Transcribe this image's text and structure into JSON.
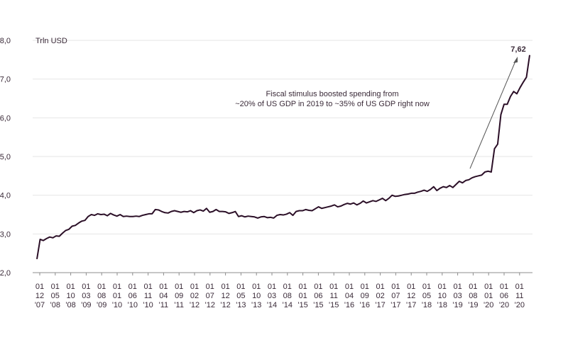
{
  "chart_data": {
    "type": "line",
    "unit_label": "Trln USD",
    "ylim": [
      2.0,
      8.0
    ],
    "y_ticks": [
      "2,0",
      "3,0",
      "4,0",
      "5,0",
      "6,0",
      "7,0",
      "8,0"
    ],
    "x_tick_labels": [
      [
        "01",
        "12",
        "'07"
      ],
      [
        "01",
        "05",
        "'08"
      ],
      [
        "01",
        "10",
        "'08"
      ],
      [
        "01",
        "03",
        "'09"
      ],
      [
        "01",
        "08",
        "'09"
      ],
      [
        "01",
        "01",
        "'10"
      ],
      [
        "01",
        "06",
        "'10"
      ],
      [
        "01",
        "11",
        "'10"
      ],
      [
        "01",
        "04",
        "'11"
      ],
      [
        "01",
        "09",
        "'11"
      ],
      [
        "01",
        "02",
        "'12"
      ],
      [
        "01",
        "07",
        "'12"
      ],
      [
        "01",
        "12",
        "'12"
      ],
      [
        "01",
        "05",
        "'13"
      ],
      [
        "01",
        "10",
        "'13"
      ],
      [
        "01",
        "03",
        "'14"
      ],
      [
        "01",
        "08",
        "'14"
      ],
      [
        "01",
        "01",
        "'15"
      ],
      [
        "01",
        "06",
        "'15"
      ],
      [
        "01",
        "11",
        "'15"
      ],
      [
        "01",
        "04",
        "'16"
      ],
      [
        "01",
        "09",
        "'16"
      ],
      [
        "01",
        "02",
        "'17"
      ],
      [
        "01",
        "07",
        "'17"
      ],
      [
        "01",
        "12",
        "'17"
      ],
      [
        "01",
        "05",
        "'18"
      ],
      [
        "01",
        "10",
        "'18"
      ],
      [
        "01",
        "03",
        "'19"
      ],
      [
        "01",
        "08",
        "'19"
      ],
      [
        "01",
        "01",
        "'20"
      ],
      [
        "01",
        "06",
        "'20"
      ],
      [
        "01",
        "11",
        "'20"
      ]
    ],
    "grid": "horizontal",
    "series": [
      {
        "color": "#2b0f27",
        "values": [
          2.35,
          2.86,
          2.83,
          2.88,
          2.92,
          2.9,
          2.95,
          2.94,
          3.02,
          3.09,
          3.12,
          3.2,
          3.22,
          3.28,
          3.33,
          3.35,
          3.45,
          3.5,
          3.48,
          3.52,
          3.5,
          3.51,
          3.47,
          3.53,
          3.49,
          3.46,
          3.5,
          3.45,
          3.46,
          3.45,
          3.45,
          3.46,
          3.45,
          3.48,
          3.5,
          3.52,
          3.52,
          3.63,
          3.62,
          3.58,
          3.55,
          3.54,
          3.58,
          3.6,
          3.58,
          3.56,
          3.58,
          3.57,
          3.6,
          3.55,
          3.6,
          3.62,
          3.59,
          3.66,
          3.56,
          3.58,
          3.63,
          3.58,
          3.58,
          3.57,
          3.53,
          3.55,
          3.58,
          3.45,
          3.47,
          3.44,
          3.46,
          3.45,
          3.44,
          3.41,
          3.44,
          3.45,
          3.42,
          3.43,
          3.41,
          3.48,
          3.5,
          3.49,
          3.51,
          3.55,
          3.48,
          3.58,
          3.6,
          3.6,
          3.63,
          3.61,
          3.6,
          3.65,
          3.7,
          3.66,
          3.68,
          3.7,
          3.72,
          3.75,
          3.7,
          3.72,
          3.76,
          3.79,
          3.77,
          3.8,
          3.75,
          3.79,
          3.85,
          3.8,
          3.83,
          3.86,
          3.84,
          3.88,
          3.92,
          3.86,
          3.92,
          4.0,
          3.97,
          3.98,
          4.0,
          4.02,
          4.03,
          4.05,
          4.05,
          4.08,
          4.1,
          4.13,
          4.1,
          4.15,
          4.22,
          4.12,
          4.18,
          4.22,
          4.2,
          4.25,
          4.2,
          4.28,
          4.36,
          4.32,
          4.38,
          4.4,
          4.45,
          4.48,
          4.5,
          4.52,
          4.6,
          4.62,
          4.6,
          5.2,
          5.32,
          6.08,
          6.35,
          6.35,
          6.55,
          6.68,
          6.62,
          6.78,
          6.92,
          7.05,
          7.62
        ]
      }
    ],
    "annotation": {
      "line1": "Fiscal stimulus boosted spending from",
      "line2": "~20% of US GDP in 2019 to ~35% of US GDP right now"
    },
    "end_label": "7,62"
  }
}
